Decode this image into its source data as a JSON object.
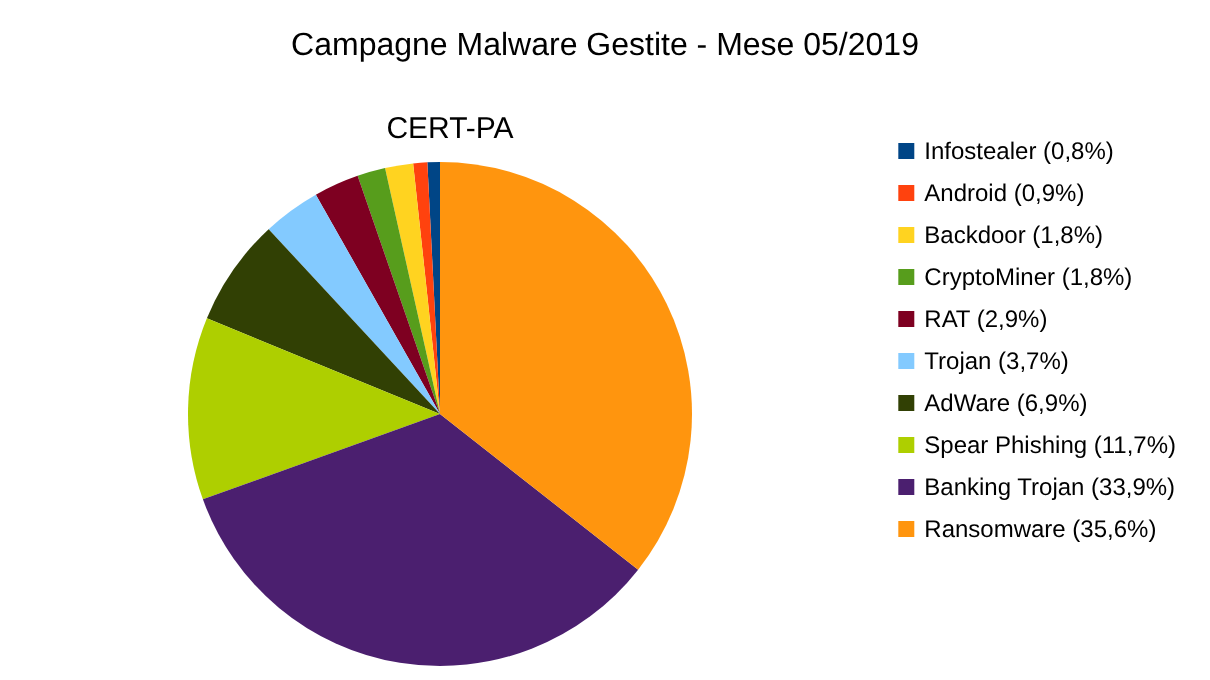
{
  "chart_data": {
    "type": "pie",
    "title": "Campagne Malware Gestite - Mese 05/2019",
    "subtitle": "CERT-PA",
    "categories": [
      "Infostealer (0,8%)",
      "Android (0,9%)",
      "Backdoor (1,8%)",
      "CryptoMiner (1,8%)",
      "RAT (2,9%)",
      "Trojan (3,7%)",
      "AdWare (6,9%)",
      "Spear Phishing (11,7%)",
      "Banking Trojan (33,9%)",
      "Ransomware (35,6%)"
    ],
    "values": [
      0.8,
      0.9,
      1.8,
      1.8,
      2.9,
      3.7,
      6.9,
      11.7,
      33.9,
      35.6
    ],
    "colors": [
      "#004586",
      "#ff420e",
      "#ffd320",
      "#579d1c",
      "#7e0021",
      "#83caff",
      "#314004",
      "#aecf00",
      "#4b1f6f",
      "#ff950e"
    ],
    "legend": "right"
  }
}
